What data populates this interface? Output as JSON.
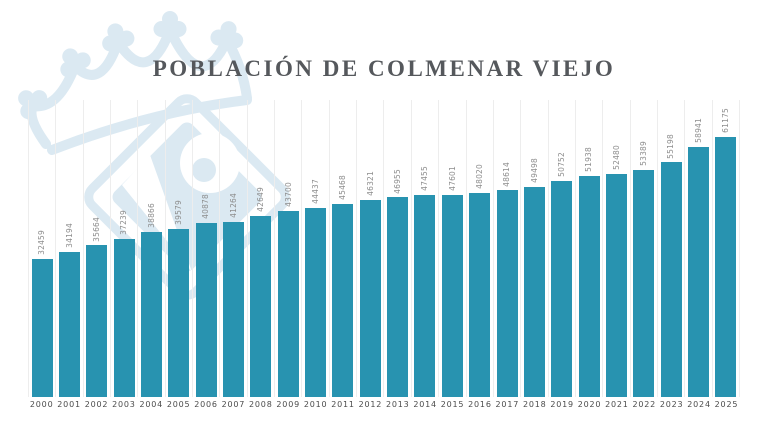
{
  "title": "POBLACIÓN DE COLMENAR VIEJO",
  "colors": {
    "bar": "#2893b0",
    "value_label": "#8d8d8d",
    "year_label": "#4b4b4b",
    "title": "#55585c",
    "gridline": "#ededed",
    "watermark": "#dbe9f2"
  },
  "watermark": {
    "name": "colmenar-viejo-crest-watermark"
  },
  "chart_data": {
    "type": "bar",
    "title": "POBLACIÓN DE COLMENAR VIEJO",
    "xlabel": "",
    "ylabel": "",
    "ylim": [
      0,
      61175
    ],
    "grid": "vertical-column-separators",
    "legend": "none",
    "value_labels": "rotated-vertical-above-bars",
    "categories": [
      "2000",
      "2001",
      "2002",
      "2003",
      "2004",
      "2005",
      "2006",
      "2007",
      "2008",
      "2009",
      "2010",
      "2011",
      "2012",
      "2013",
      "2014",
      "2015",
      "2016",
      "2017",
      "2018",
      "2019",
      "2020",
      "2021",
      "2022",
      "2023",
      "2024",
      "2025"
    ],
    "values": [
      32459,
      34194,
      35664,
      37239,
      38866,
      39579,
      40878,
      41264,
      42649,
      43700,
      44437,
      45468,
      46321,
      46955,
      47455,
      47601,
      48020,
      48614,
      49498,
      50752,
      51938,
      52480,
      53389,
      55198,
      58941,
      61175
    ]
  }
}
